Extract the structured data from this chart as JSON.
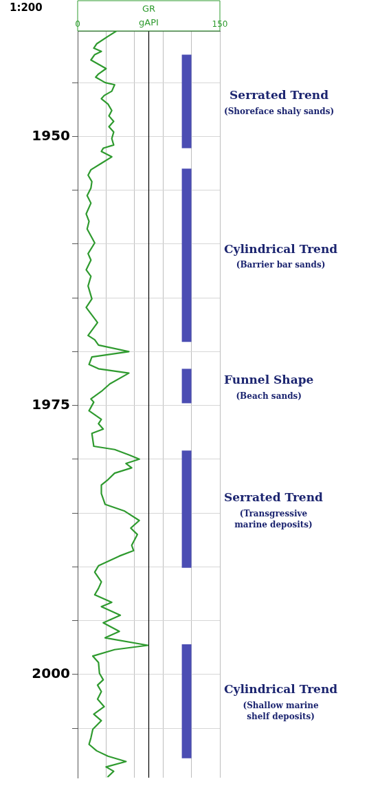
{
  "chart_data": {
    "type": "line",
    "title": "GR",
    "xlabel": "gAPI",
    "annotations": [
      "1:200"
    ],
    "xlim": [
      0,
      150
    ],
    "xticks": [
      0,
      {
        "value": 30,
        "label": null
      },
      {
        "value": 60,
        "label": null
      },
      {
        "value": 90,
        "label": null
      },
      {
        "value": 120,
        "label": null
      },
      150
    ],
    "ylim": [
      2009.6,
      1940.2
    ],
    "yticks": [
      {
        "value": 1945,
        "label": null
      },
      1950,
      {
        "value": 1955,
        "label": null
      },
      {
        "value": 1960,
        "label": null
      },
      {
        "value": 1965,
        "label": null
      },
      {
        "value": 1970,
        "label": null
      },
      1975,
      {
        "value": 1980,
        "label": null
      },
      {
        "value": 1985,
        "label": null
      },
      {
        "value": 1990,
        "label": null
      },
      {
        "value": 1995,
        "label": null
      },
      2000,
      {
        "value": 2005,
        "label": null
      }
    ],
    "grid": true,
    "legend": false,
    "marker": "none",
    "line_style": "solid",
    "ref_lines": [
      {
        "axis": "x",
        "value": 75,
        "color": "#000000"
      }
    ],
    "bands": [
      {
        "axis": "y",
        "from": 1942.4,
        "to": 1951.1,
        "label": "Serrated Trend\n(Shoreface shaly sands)",
        "color": "#4b4db3"
      },
      {
        "axis": "y",
        "from": 1953.0,
        "to": 1969.1,
        "label": "Cylindrical Trend\n(Barrier bar sands)",
        "color": "#4b4db3"
      },
      {
        "axis": "y",
        "from": 1971.6,
        "to": 1974.8,
        "label": "Funnel Shape\n(Beach sands)",
        "color": "#4b4db3"
      },
      {
        "axis": "y",
        "from": 1979.2,
        "to": 1990.1,
        "label": "Serrated Trend\n(Transgressive\nmarine deposits)",
        "color": "#4b4db3"
      },
      {
        "axis": "y",
        "from": 1997.2,
        "to": 2007.8,
        "label": "Cylindrical Trend\n(Shallow marine\nshelf deposits)",
        "color": "#4b4db3"
      }
    ],
    "series": [
      {
        "color": "#2e9a2e",
        "x": [
          41,
          32,
          20,
          17,
          25,
          18,
          14,
          22,
          30,
          22,
          19,
          29,
          39,
          36,
          28,
          25,
          32,
          36,
          33,
          38,
          33,
          38,
          36,
          38,
          27,
          25,
          36,
          25,
          14,
          11,
          15,
          14,
          10,
          14,
          9,
          12,
          10,
          18,
          11,
          14,
          9,
          14,
          11,
          15,
          9,
          21,
          11,
          18,
          22,
          54,
          15,
          12,
          22,
          54,
          34,
          25,
          14,
          17,
          12,
          25,
          22,
          27,
          15,
          17,
          39,
          54,
          65,
          51,
          57,
          39,
          32,
          25,
          25,
          29,
          49,
          65,
          56,
          63,
          57,
          59,
          44,
          22,
          18,
          25,
          22,
          18,
          36,
          25,
          45,
          27,
          44,
          29,
          74,
          39,
          16,
          22,
          23,
          27,
          21,
          25,
          21,
          28,
          17,
          25,
          16,
          14,
          12,
          20,
          32,
          51,
          30,
          38,
          32
        ],
        "values": [
          1940.2,
          1940.7,
          1941.4,
          1941.8,
          1942.1,
          1942.4,
          1942.9,
          1943.3,
          1943.7,
          1944.2,
          1944.5,
          1945.0,
          1945.2,
          1945.8,
          1946.2,
          1946.5,
          1947.0,
          1947.6,
          1948.1,
          1948.6,
          1949.1,
          1949.6,
          1950.2,
          1950.8,
          1951.1,
          1951.4,
          1951.9,
          1952.5,
          1953.1,
          1953.6,
          1954.2,
          1954.8,
          1955.5,
          1956.2,
          1957.2,
          1957.9,
          1958.6,
          1959.9,
          1960.9,
          1961.5,
          1962.4,
          1963.0,
          1963.9,
          1965.1,
          1965.9,
          1967.3,
          1968.5,
          1968.9,
          1969.4,
          1970.0,
          1970.5,
          1971.2,
          1971.6,
          1972.0,
          1973.0,
          1973.7,
          1974.4,
          1974.7,
          1975.5,
          1976.3,
          1976.7,
          1977.2,
          1977.6,
          1978.8,
          1979.1,
          1979.6,
          1980.0,
          1980.4,
          1980.8,
          1981.3,
          1981.9,
          1982.4,
          1983.2,
          1984.2,
          1984.8,
          1985.7,
          1986.4,
          1987.0,
          1988.0,
          1988.5,
          1989.0,
          1989.9,
          1990.5,
          1991.4,
          1992.0,
          1992.6,
          1993.3,
          1993.7,
          1994.5,
          1995.2,
          1996.0,
          1996.6,
          1997.3,
          1997.7,
          1998.3,
          1998.9,
          1999.9,
          2000.5,
          2001.0,
          2001.6,
          2002.3,
          2003.0,
          2003.7,
          2004.3,
          2005.1,
          2005.9,
          2006.5,
          2007.1,
          2007.6,
          2008.1,
          2008.6,
          2009.0,
          2009.5
        ]
      }
    ]
  }
}
